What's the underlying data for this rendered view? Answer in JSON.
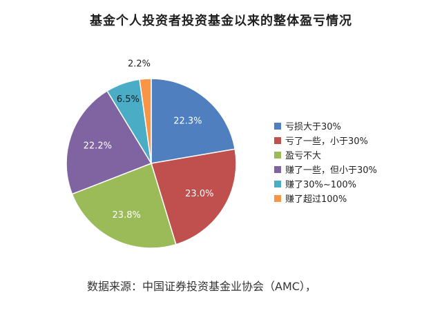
{
  "chart_data": {
    "type": "pie",
    "title": "基金个人投资者投资基金以来的整体盈亏情况",
    "slices": [
      {
        "label": "亏损大于30%",
        "value": 22.3,
        "value_label": "22.3%",
        "color": "#4F7FBF"
      },
      {
        "label": "亏了一些，小于30%",
        "value": 23.0,
        "value_label": "23.0%",
        "color": "#C0504D"
      },
      {
        "label": "盈亏不大",
        "value": 23.8,
        "value_label": "23.8%",
        "color": "#9BBB59"
      },
      {
        "label": "赚了一些，但小于30%",
        "value": 22.2,
        "value_label": "22.2%",
        "color": "#8064A2"
      },
      {
        "label": "赚了30%~100%",
        "value": 6.5,
        "value_label": "6.5%",
        "color": "#4BACC6"
      },
      {
        "label": "赚了超过100%",
        "value": 2.2,
        "value_label": "2.2%",
        "color": "#F79646"
      }
    ],
    "legend_position": "right"
  },
  "source": "数据来源：中国证券投资基金业协会（AMC），"
}
